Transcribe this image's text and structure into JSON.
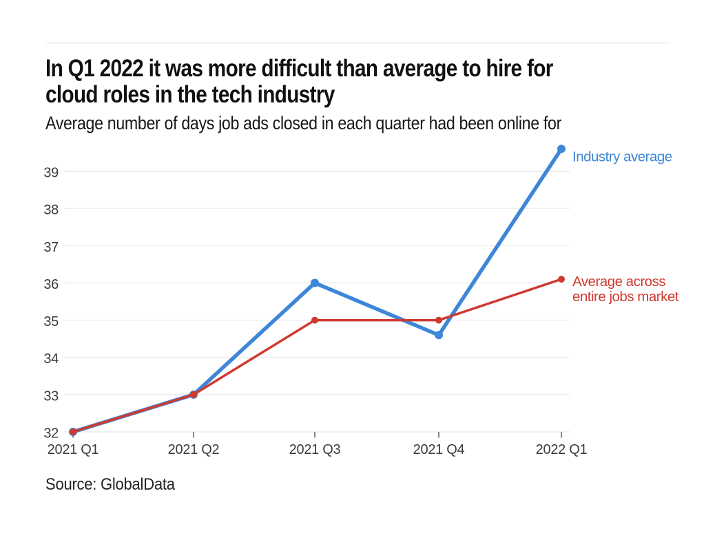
{
  "header": {
    "title": "In Q1 2022 it was more difficult than average to hire for cloud roles in the tech industry",
    "title_lines": [
      "In Q1 2022 it was more difficult than average to hire for",
      "cloud roles in the tech industry"
    ],
    "subtitle": "Average number of days job ads closed in each quarter had been online for"
  },
  "footer": {
    "source": "Source: GlobalData"
  },
  "colors": {
    "industry_blue": "#3d86d8",
    "market_red": "#cf3a30",
    "gridline": "#ececec",
    "tick": "#7a7a7a",
    "axis_text": "#3c3c3c",
    "divider": "#dadada"
  },
  "chart_data": {
    "type": "line",
    "title": "In Q1 2022 it was more difficult than average to hire for cloud roles in the tech industry",
    "subtitle": "Average number of days job ads closed in each quarter had been online for",
    "categories": [
      "2021 Q1",
      "2021 Q2",
      "2021 Q3",
      "2021 Q4",
      "2022 Q1"
    ],
    "series": [
      {
        "name": "Industry average",
        "label_lines": [
          "Industry average"
        ],
        "color": "#3d86d8",
        "line_width": 5.5,
        "point_radius": 6,
        "values": [
          32,
          33,
          36,
          34.6,
          39.6
        ]
      },
      {
        "name": "Average across entire jobs market",
        "label_lines": [
          "Average across",
          "entire jobs market"
        ],
        "color": "#cf3a30",
        "line_width": 3.5,
        "point_radius": 5,
        "values": [
          32,
          33,
          35,
          35,
          36.1
        ]
      }
    ],
    "xlabel": "",
    "ylabel": "",
    "yticks": [
      32,
      33,
      34,
      35,
      36,
      37,
      38,
      39
    ],
    "ylim": [
      32,
      39.8
    ],
    "grid": "horizontal-only",
    "legend_position": "right-of-line-end",
    "source": "Source: GlobalData"
  }
}
